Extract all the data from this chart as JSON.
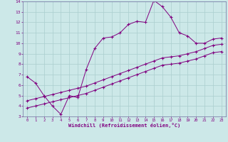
{
  "xlabel": "Windchill (Refroidissement éolien,°C)",
  "bg_color": "#cce8e8",
  "line_color": "#800080",
  "series1_x": [
    0,
    1,
    2,
    3,
    4,
    5,
    6,
    7,
    8,
    9,
    10,
    11,
    12,
    13,
    14,
    15,
    16,
    17,
    18,
    19,
    20,
    21,
    22,
    23
  ],
  "series1_y": [
    6.8,
    6.2,
    5.0,
    4.0,
    3.2,
    5.0,
    4.8,
    7.5,
    9.5,
    10.5,
    10.6,
    11.0,
    11.8,
    12.1,
    12.0,
    14.1,
    13.5,
    12.5,
    11.0,
    10.7,
    10.0,
    10.0,
    10.4,
    10.5
  ],
  "series2_x": [
    0,
    1,
    2,
    3,
    4,
    5,
    6,
    7,
    8,
    9,
    10,
    11,
    12,
    13,
    14,
    15,
    16,
    17,
    18,
    19,
    20,
    21,
    22,
    23
  ],
  "series2_y": [
    4.5,
    4.7,
    4.9,
    5.1,
    5.3,
    5.5,
    5.7,
    5.9,
    6.2,
    6.5,
    6.8,
    7.1,
    7.4,
    7.7,
    8.0,
    8.3,
    8.6,
    8.7,
    8.8,
    9.0,
    9.2,
    9.5,
    9.8,
    9.9
  ],
  "series3_x": [
    0,
    1,
    2,
    3,
    4,
    5,
    6,
    7,
    8,
    9,
    10,
    11,
    12,
    13,
    14,
    15,
    16,
    17,
    18,
    19,
    20,
    21,
    22,
    23
  ],
  "series3_y": [
    3.8,
    4.0,
    4.2,
    4.4,
    4.6,
    4.8,
    5.0,
    5.2,
    5.5,
    5.8,
    6.1,
    6.4,
    6.7,
    7.0,
    7.3,
    7.6,
    7.9,
    8.0,
    8.1,
    8.3,
    8.5,
    8.8,
    9.1,
    9.2
  ],
  "xlim": [
    -0.5,
    23.5
  ],
  "ylim": [
    3,
    14
  ],
  "yticks": [
    3,
    4,
    5,
    6,
    7,
    8,
    9,
    10,
    11,
    12,
    13,
    14
  ],
  "xticks": [
    0,
    1,
    2,
    3,
    4,
    5,
    6,
    7,
    8,
    9,
    10,
    11,
    12,
    13,
    14,
    15,
    16,
    17,
    18,
    19,
    20,
    21,
    22,
    23
  ]
}
